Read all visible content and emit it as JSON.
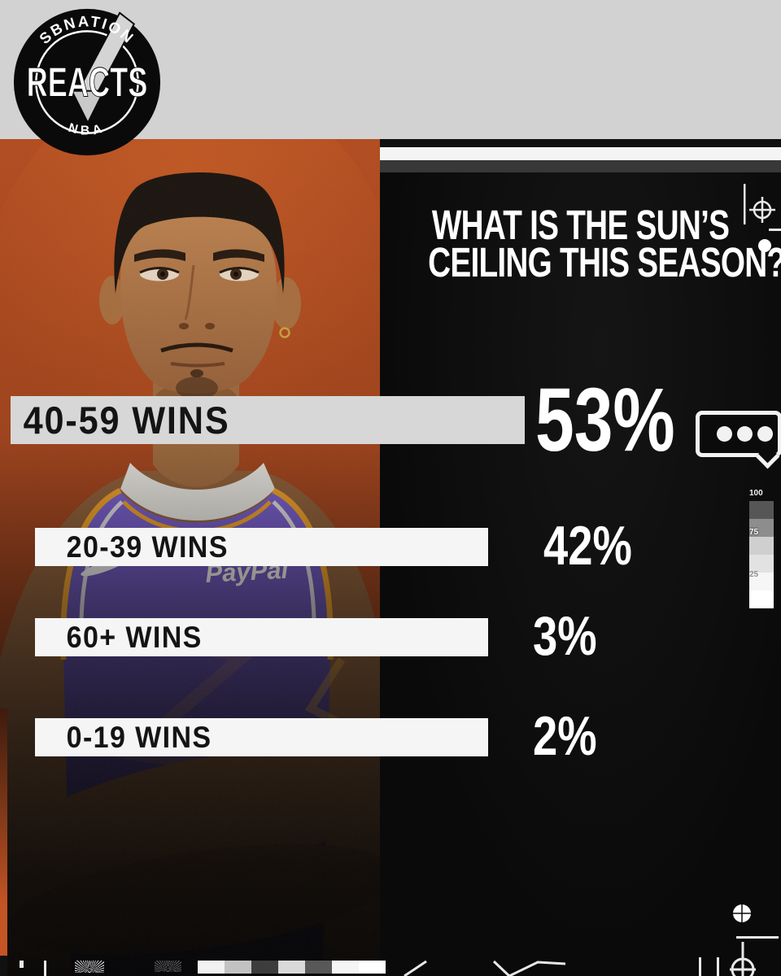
{
  "brand": {
    "logo_top": "SBNATION",
    "logo_main": "REACTS",
    "logo_bottom": "NBA"
  },
  "title": {
    "line1": "WHAT IS THE SUN’S",
    "line2": "CEILING THIS SEASON?"
  },
  "chart_data": {
    "type": "bar",
    "title": "WHAT IS THE SUN’S CEILING THIS SEASON?",
    "orientation": "horizontal",
    "unit": "%",
    "categories": [
      "40-59 WINS",
      "20-39 WINS",
      "60+ WINS",
      "0-19 WINS"
    ],
    "values": [
      53,
      42,
      3,
      2
    ],
    "rows": [
      {
        "label": "40-59 WINS",
        "pct": "53%",
        "value": 53,
        "emphasis": true
      },
      {
        "label": "20-39 WINS",
        "pct": "42%",
        "value": 42,
        "emphasis": false
      },
      {
        "label": "60+ WINS",
        "pct": "3%",
        "value": 3,
        "emphasis": false
      },
      {
        "label": "0-19 WINS",
        "pct": "2%",
        "value": 2,
        "emphasis": false
      }
    ],
    "leader_callout": "…",
    "legend": false,
    "gridlines": false
  },
  "jersey": {
    "sponsor_label": "PayPal"
  },
  "scale_widget": {
    "labels": {
      "top": "100",
      "mid": "75",
      "low": "25"
    },
    "steps": [
      "#565656",
      "#8d8d8d",
      "#cfcfcf",
      "#e2e2e2",
      "#f6f6f6",
      "#ffffff"
    ]
  },
  "calibration": {
    "strip_colors": [
      "#f2f2f2",
      "#c2c2c2",
      "#3d3d3d",
      "#d9d9d9",
      "#585858",
      "#f5f5f5",
      "#ffffff"
    ]
  },
  "colors": {
    "header_gray": "#d2d2d2",
    "panel_black": "#0b0b0b",
    "photo_orange": "#a8431c",
    "bar_highlight_gray": "#d7d7d7",
    "bar_white": "#f5f5f5",
    "jersey_purple": "#6b4fc2",
    "jersey_yellow": "#f0a024",
    "text_white": "#ffffff",
    "text_black": "#141414"
  }
}
